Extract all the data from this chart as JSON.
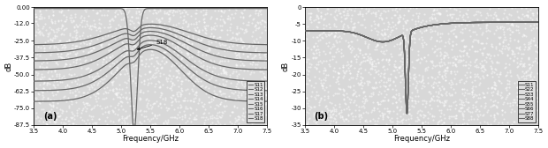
{
  "freq_range": [
    3.5,
    7.5
  ],
  "plot_a": {
    "ylim": [
      -87.5,
      0.0
    ],
    "yticks": [
      0.0,
      -12.0,
      -25.0,
      -37.5,
      -50.0,
      -62.5,
      -75.0,
      -87.5
    ],
    "ytick_labels": [
      "0.00",
      "-12.0",
      "-25.0",
      "-37.5",
      "-50.0",
      "-62.5",
      "-75.0",
      "-87.5"
    ],
    "ylabel": "dB",
    "xlabel": "Frequency/GHz",
    "label": "(a)",
    "legend": [
      "S11",
      "S12",
      "S13",
      "S14",
      "S15",
      "S16",
      "S17",
      "S18"
    ]
  },
  "plot_b": {
    "ylim": [
      -35.0,
      0.0
    ],
    "yticks": [
      0,
      -5,
      -10,
      -15,
      -20,
      -25,
      -30,
      -35
    ],
    "ytick_labels": [
      "0",
      "-5",
      "-10",
      "-15",
      "-20",
      "-25",
      "-30",
      "-35"
    ],
    "ylabel": "dB",
    "xlabel": "Frequency/GHz",
    "label": "(b)",
    "legend": [
      "S11",
      "S22",
      "S33",
      "S44",
      "S55",
      "S66",
      "S77",
      "S88"
    ]
  },
  "xticks": [
    3.5,
    4.0,
    4.5,
    5.0,
    5.5,
    6.0,
    6.5,
    7.0,
    7.5
  ],
  "xtick_labels": [
    "3.5",
    "4.0",
    "4.5",
    "5.0",
    "5.5",
    "6.0",
    "6.5",
    "7.0",
    "7.5"
  ],
  "bg_color": "#d8d8d8",
  "line_color": "#666666",
  "fig_bg": "#ffffff"
}
